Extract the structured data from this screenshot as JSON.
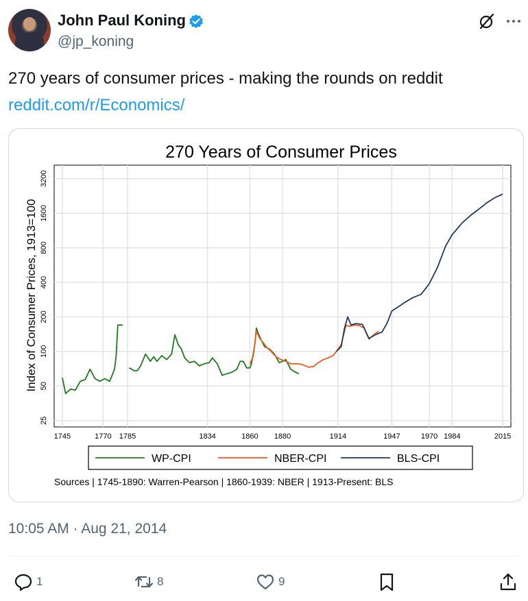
{
  "tweet": {
    "display_name": "John Paul Koning",
    "handle": "@jp_koning",
    "text": "270 years of consumer prices - making the rounds on reddit",
    "link": "reddit.com/r/Economics/",
    "timestamp": "10:05 AM · Aug 21, 2014",
    "verified_color": "#1d9bf0"
  },
  "actions": {
    "replies": "1",
    "reposts": "8",
    "likes": "9"
  },
  "icons": [
    "grok-icon",
    "more-icon",
    "reply-icon",
    "repost-icon",
    "like-icon",
    "bookmark-icon",
    "share-icon"
  ],
  "chart_data": {
    "type": "line",
    "title": "270 Years of Consumer Prices",
    "ylabel": "Index of Consumer Prices, 1913=100",
    "xlabel": "",
    "y_scale": "log",
    "ylim": [
      22,
      4200
    ],
    "xlim": [
      1740,
      2020
    ],
    "y_ticks": [
      "25",
      "50",
      "100",
      "200",
      "400",
      "800",
      "1600",
      "3200"
    ],
    "x_ticks": [
      "1745",
      "1770",
      "1785",
      "1834",
      "1860",
      "1880",
      "1914",
      "1947",
      "1970",
      "1984",
      "2015"
    ],
    "source_note": "Sources | 1745-1890: Warren-Pearson | 1860-1939: NBER | 1913-Present: BLS",
    "series": [
      {
        "name": "WP-CPI",
        "color": "#1f7a1f",
        "points": [
          [
            1745,
            59
          ],
          [
            1747,
            43
          ],
          [
            1750,
            47
          ],
          [
            1753,
            46
          ],
          [
            1756,
            55
          ],
          [
            1759,
            57
          ],
          [
            1762,
            70
          ],
          [
            1765,
            58
          ],
          [
            1768,
            55
          ],
          [
            1771,
            58
          ],
          [
            1774,
            55
          ],
          [
            1777,
            70
          ],
          [
            1778,
            92
          ],
          [
            1779,
            170
          ],
          [
            1782,
            170
          ],
          [
            1783,
            null
          ],
          [
            1786,
            72
          ],
          [
            1789,
            68
          ],
          [
            1791,
            68
          ],
          [
            1793,
            75
          ],
          [
            1796,
            95
          ],
          [
            1799,
            82
          ],
          [
            1801,
            90
          ],
          [
            1803,
            82
          ],
          [
            1806,
            92
          ],
          [
            1809,
            85
          ],
          [
            1812,
            95
          ],
          [
            1814,
            140
          ],
          [
            1816,
            115
          ],
          [
            1818,
            105
          ],
          [
            1820,
            88
          ],
          [
            1823,
            80
          ],
          [
            1826,
            82
          ],
          [
            1829,
            75
          ],
          [
            1832,
            78
          ],
          [
            1835,
            80
          ],
          [
            1837,
            88
          ],
          [
            1840,
            78
          ],
          [
            1843,
            62
          ],
          [
            1846,
            64
          ],
          [
            1849,
            66
          ],
          [
            1852,
            70
          ],
          [
            1854,
            82
          ],
          [
            1856,
            82
          ],
          [
            1858,
            72
          ],
          [
            1860,
            72
          ],
          [
            1861,
            78
          ],
          [
            1863,
            115
          ],
          [
            1864,
            160
          ],
          [
            1865,
            145
          ],
          [
            1867,
            125
          ],
          [
            1869,
            110
          ],
          [
            1872,
            105
          ],
          [
            1875,
            95
          ],
          [
            1878,
            80
          ],
          [
            1880,
            82
          ],
          [
            1882,
            85
          ],
          [
            1885,
            70
          ],
          [
            1887,
            67
          ],
          [
            1890,
            64
          ]
        ]
      },
      {
        "name": "NBER-CPI",
        "color": "#f05a1e",
        "points": [
          [
            1860,
            78
          ],
          [
            1862,
            90
          ],
          [
            1864,
            150
          ],
          [
            1866,
            130
          ],
          [
            1868,
            120
          ],
          [
            1870,
            110
          ],
          [
            1873,
            100
          ],
          [
            1876,
            90
          ],
          [
            1879,
            85
          ],
          [
            1882,
            82
          ],
          [
            1885,
            78
          ],
          [
            1890,
            78
          ],
          [
            1893,
            76
          ],
          [
            1896,
            73
          ],
          [
            1899,
            74
          ],
          [
            1902,
            80
          ],
          [
            1905,
            85
          ],
          [
            1908,
            88
          ],
          [
            1911,
            92
          ],
          [
            1913,
            100
          ],
          [
            1916,
            115
          ],
          [
            1919,
            170
          ],
          [
            1921,
            165
          ],
          [
            1924,
            170
          ],
          [
            1927,
            168
          ],
          [
            1930,
            160
          ],
          [
            1933,
            128
          ],
          [
            1936,
            140
          ],
          [
            1939,
            150
          ]
        ]
      },
      {
        "name": "BLS-CPI",
        "color": "#1f3a5f",
        "points": [
          [
            1913,
            100
          ],
          [
            1916,
            110
          ],
          [
            1918,
            160
          ],
          [
            1920,
            200
          ],
          [
            1922,
            170
          ],
          [
            1925,
            175
          ],
          [
            1929,
            172
          ],
          [
            1933,
            130
          ],
          [
            1937,
            140
          ],
          [
            1941,
            148
          ],
          [
            1944,
            175
          ],
          [
            1947,
            225
          ],
          [
            1950,
            240
          ],
          [
            1955,
            268
          ],
          [
            1960,
            295
          ],
          [
            1965,
            315
          ],
          [
            1970,
            390
          ],
          [
            1975,
            540
          ],
          [
            1980,
            830
          ],
          [
            1984,
            1040
          ],
          [
            1990,
            1310
          ],
          [
            1995,
            1520
          ],
          [
            2000,
            1720
          ],
          [
            2005,
            1960
          ],
          [
            2010,
            2180
          ],
          [
            2015,
            2350
          ]
        ]
      }
    ]
  }
}
